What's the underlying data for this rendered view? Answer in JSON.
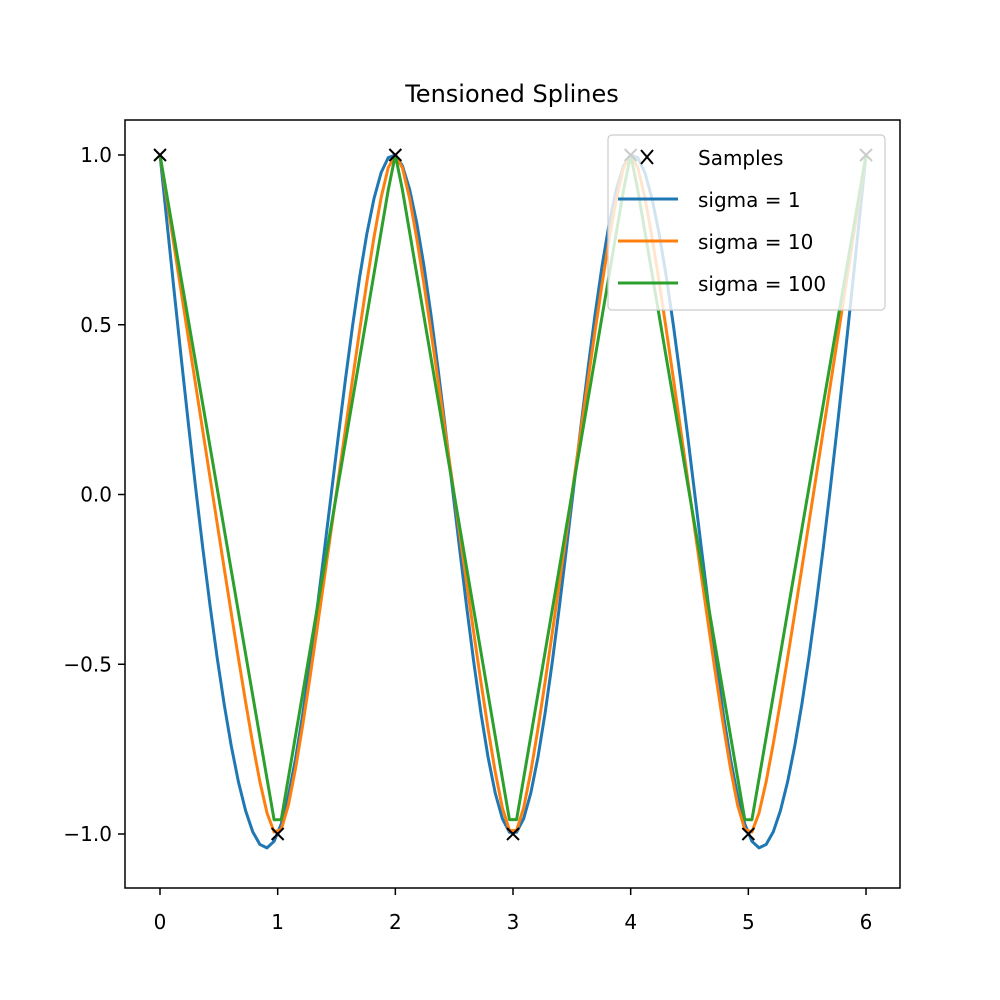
{
  "chart_data": {
    "type": "line",
    "title": "Tensioned Splines",
    "xlabel": "",
    "ylabel": "",
    "xlim": [
      -0.3,
      6.3
    ],
    "ylim": [
      -1.16,
      1.1
    ],
    "x_ticks": [
      0,
      1,
      2,
      3,
      4,
      5,
      6
    ],
    "x_tick_labels": [
      "0",
      "1",
      "2",
      "3",
      "4",
      "5",
      "6"
    ],
    "y_ticks": [
      1.0,
      0.5,
      0.0,
      -0.5,
      -1.0
    ],
    "y_tick_labels": [
      "1.0",
      "0.5",
      "0.0",
      "−0.5",
      "−1.0"
    ],
    "grid": false,
    "legend_position": "top-right",
    "samples": {
      "name": "Samples",
      "x": [
        0,
        1,
        2,
        3,
        4,
        5,
        6
      ],
      "y": [
        1,
        -1,
        1,
        -1,
        1,
        -1,
        1
      ],
      "color": "#000000",
      "marker": "x"
    },
    "series": [
      {
        "name": "sigma = 1",
        "sigma": 1,
        "color": "#1f77b4"
      },
      {
        "name": "sigma = 10",
        "sigma": 10,
        "color": "#ff7f0e"
      },
      {
        "name": "sigma = 100",
        "sigma": 100,
        "color": "#2ca02c"
      }
    ],
    "num_eval_points": 100
  }
}
